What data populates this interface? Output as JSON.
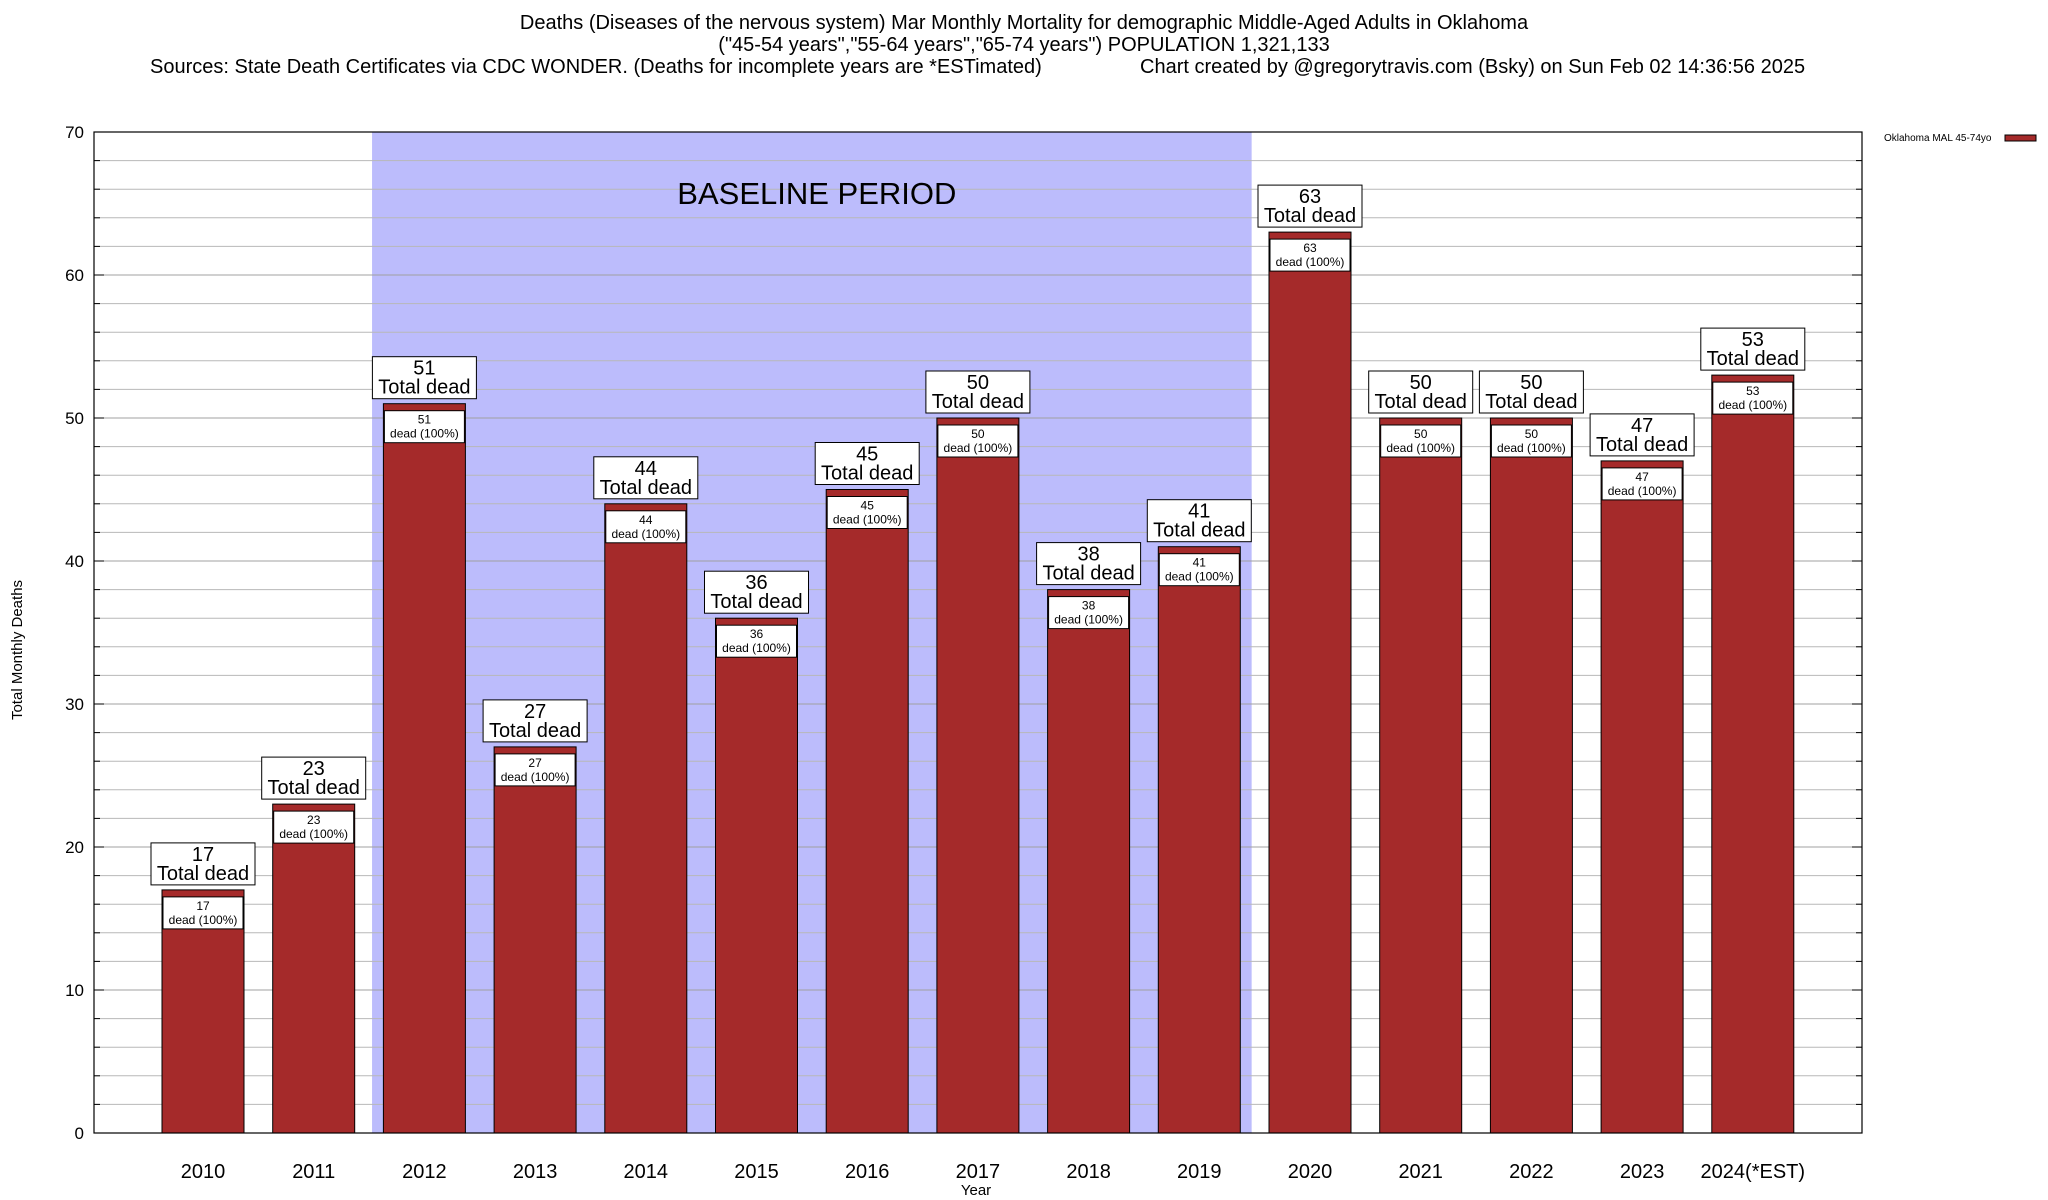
{
  "header": {
    "title_line1": "Deaths (Diseases of the nervous system) Mar Monthly Mortality for demographic Middle-Aged Adults in Oklahoma",
    "title_line2": "(\"45-54 years\",\"55-64 years\",\"65-74 years\") POPULATION 1,321,133",
    "sources": "Sources: State Death Certificates via CDC WONDER. (Deaths for incomplete years are *ESTimated)",
    "credit": "Chart created by @gregorytravis.com (Bsky) on Sun Feb 02 14:36:56 2025"
  },
  "chart_data": {
    "type": "bar",
    "xlabel": "Year",
    "ylabel": "Total Monthly Deaths",
    "ylim": [
      0,
      70
    ],
    "yticks": [
      0,
      10,
      20,
      30,
      40,
      50,
      60,
      70
    ],
    "grid": true,
    "legend_position": "top-right",
    "categories": [
      "2010",
      "2011",
      "2012",
      "2013",
      "2014",
      "2015",
      "2016",
      "2017",
      "2018",
      "2019",
      "2020",
      "2021",
      "2022",
      "2023",
      "2024(*EST)"
    ],
    "series": [
      {
        "name": "Oklahoma MAL 45-74yo",
        "color": "#a52a2a",
        "values": [
          17,
          23,
          51,
          27,
          44,
          36,
          45,
          50,
          38,
          41,
          63,
          50,
          50,
          47,
          53
        ]
      }
    ],
    "top_label_suffix": "Total dead",
    "inner_label_suffix": "dead (100%)",
    "baseline_period": {
      "label": "BASELINE PERIOD",
      "start": "2012",
      "end": "2019",
      "color": "#bcbcfc"
    }
  }
}
